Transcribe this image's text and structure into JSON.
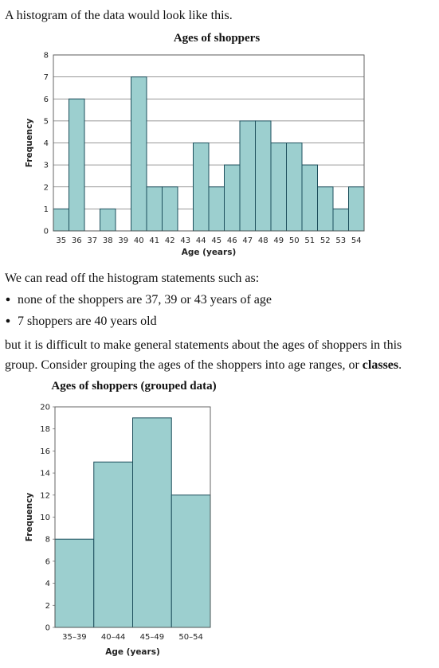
{
  "intro": "A histogram of the data would look like this.",
  "chart_data": [
    {
      "type": "bar",
      "title": "Ages of shoppers",
      "x_label": "Age (years)",
      "y_label": "Frequency",
      "categories": [
        "35",
        "36",
        "37",
        "38",
        "39",
        "40",
        "41",
        "42",
        "43",
        "44",
        "45",
        "46",
        "47",
        "48",
        "49",
        "50",
        "51",
        "52",
        "53",
        "54"
      ],
      "values": [
        1,
        6,
        0,
        1,
        0,
        7,
        2,
        2,
        0,
        4,
        2,
        3,
        5,
        5,
        4,
        4,
        3,
        2,
        1,
        2
      ],
      "color": "#9ccfcf",
      "ylim": [
        0,
        8
      ],
      "yticks": [
        0,
        1,
        2,
        3,
        4,
        5,
        6,
        7,
        8
      ],
      "grid": true
    },
    {
      "type": "bar",
      "title": "Ages of shoppers (grouped data)",
      "x_label": "Age (years)",
      "y_label": "Frequency",
      "categories": [
        "35–39",
        "40–44",
        "45–49",
        "50–54"
      ],
      "values": [
        8,
        15,
        19,
        12
      ],
      "color": "#9ccfcf",
      "ylim": [
        0,
        20
      ],
      "yticks": [
        0,
        2,
        4,
        6,
        8,
        10,
        12,
        14,
        16,
        18,
        20
      ],
      "grid": false
    }
  ],
  "paragraph": "We can read off the histogram statements such as:",
  "bullets": [
    "none of the shoppers are 37, 39 or 43 years of age",
    "7 shoppers are 40 years old"
  ],
  "closing_lines": [
    "but it is difficult to make general statements about the ages of shoppers in this",
    "group. Consider grouping the ages of the shoppers into age ranges, or "
  ],
  "closing_term": "classes",
  "closing_end": "."
}
